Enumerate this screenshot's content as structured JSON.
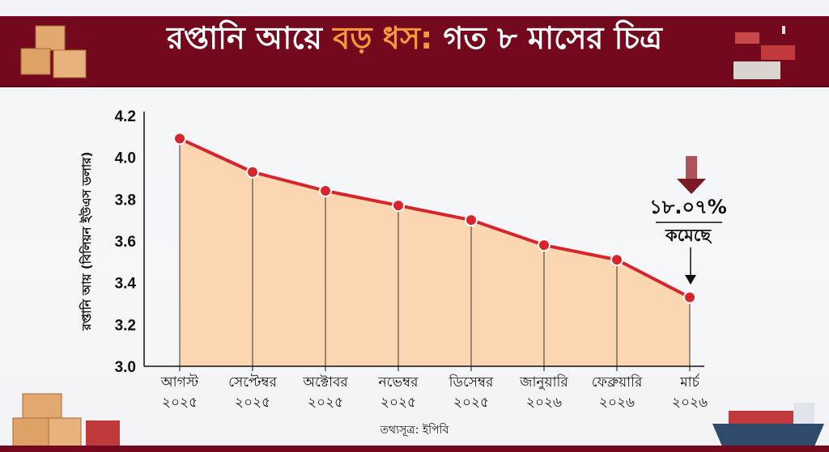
{
  "header": {
    "title_part1": "রপ্তানি আয়ে ",
    "title_highlight": "বড় ধস:",
    "title_part2": " গত ৮ মাসের চিত্র"
  },
  "source": "তথ্যসূত্র: ইপিবি",
  "annotation": {
    "percent": "১৮.০৭%",
    "label": "কমেছে"
  },
  "colors": {
    "banner": "#74091d",
    "highlight": "#f7983a",
    "line": "#d8252b",
    "fill": "#fcd3a9"
  },
  "chart_data": {
    "type": "line",
    "title": "রপ্তানি আয়ে বড় ধস: গত ৮ মাসের চিত্র",
    "ylabel": "রপ্তানি আয় (বিলিয়ন ইউএস ডলার)",
    "xlabel": "",
    "ylim": [
      3.0,
      4.2
    ],
    "yticks": [
      "3.0",
      "3.2",
      "3.4",
      "3.6",
      "3.8",
      "4.0",
      "4.2"
    ],
    "categories": [
      {
        "month": "আগস্ট",
        "year": "২০২৫"
      },
      {
        "month": "সেপ্টেম্বর",
        "year": "২০২৫"
      },
      {
        "month": "অক্টোবর",
        "year": "২০২৫"
      },
      {
        "month": "নভেম্বর",
        "year": "২০২৫"
      },
      {
        "month": "ডিসেম্বর",
        "year": "২০২৫"
      },
      {
        "month": "জানুয়ারি",
        "year": "২০২৬"
      },
      {
        "month": "ফেব্রুয়ারি",
        "year": "২০২৬"
      },
      {
        "month": "মার্চ",
        "year": "২০২৬"
      }
    ],
    "values": [
      4.09,
      3.93,
      3.84,
      3.77,
      3.7,
      3.58,
      3.51,
      3.33
    ],
    "grid": false
  }
}
